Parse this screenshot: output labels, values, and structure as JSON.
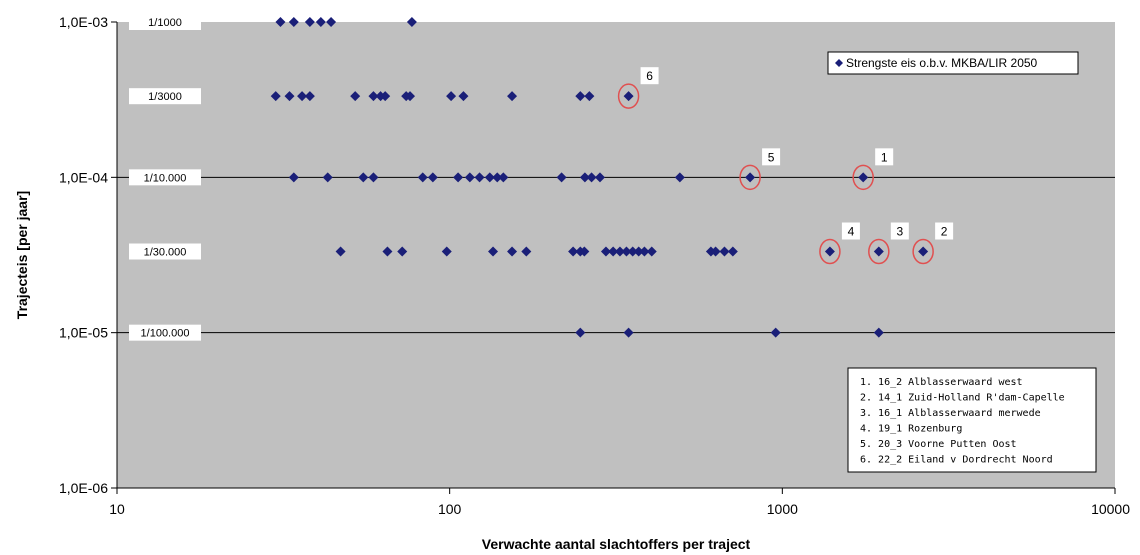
{
  "chart_data": {
    "type": "scatter",
    "xlabel": "Verwachte aantal slachtoffers per traject",
    "ylabel": "Trajecteis [per jaar]",
    "x_scale": "log",
    "y_scale": "log",
    "xlim": [
      10,
      10000
    ],
    "ylim": [
      1e-06,
      0.001
    ],
    "x_tick_labels": [
      "10",
      "100",
      "1000",
      "10000"
    ],
    "y_tick_labels": [
      "1,0E-03",
      "1,0E-04",
      "1,0E-05",
      "1,0E-06"
    ],
    "grid": "horizontal lines at 1,0E-04 and 1,0E-05",
    "legend_position": "top-right",
    "series": [
      {
        "name": "Strengste eis o.b.v. MKBA/LIR 2050",
        "color": "#1a1f78",
        "marker": "diamond",
        "points": [
          [
            31,
            0.001
          ],
          [
            34,
            0.001
          ],
          [
            38,
            0.001
          ],
          [
            41,
            0.001
          ],
          [
            44,
            0.001
          ],
          [
            77,
            0.001
          ],
          [
            30,
            0.000333
          ],
          [
            33,
            0.000333
          ],
          [
            36,
            0.000333
          ],
          [
            38,
            0.000333
          ],
          [
            52,
            0.000333
          ],
          [
            59,
            0.000333
          ],
          [
            62,
            0.000333
          ],
          [
            64,
            0.000333
          ],
          [
            74,
            0.000333
          ],
          [
            76,
            0.000333
          ],
          [
            101,
            0.000333
          ],
          [
            110,
            0.000333
          ],
          [
            154,
            0.000333
          ],
          [
            247,
            0.000333
          ],
          [
            263,
            0.000333
          ],
          [
            345,
            0.000333
          ],
          [
            34,
            0.0001
          ],
          [
            43,
            0.0001
          ],
          [
            55,
            0.0001
          ],
          [
            59,
            0.0001
          ],
          [
            83,
            0.0001
          ],
          [
            89,
            0.0001
          ],
          [
            106,
            0.0001
          ],
          [
            115,
            0.0001
          ],
          [
            123,
            0.0001
          ],
          [
            132,
            0.0001
          ],
          [
            139,
            0.0001
          ],
          [
            145,
            0.0001
          ],
          [
            217,
            0.0001
          ],
          [
            255,
            0.0001
          ],
          [
            267,
            0.0001
          ],
          [
            283,
            0.0001
          ],
          [
            492,
            0.0001
          ],
          [
            800,
            0.0001
          ],
          [
            1750,
            0.0001
          ],
          [
            47,
            3.33e-05
          ],
          [
            65,
            3.33e-05
          ],
          [
            72,
            3.33e-05
          ],
          [
            98,
            3.33e-05
          ],
          [
            135,
            3.33e-05
          ],
          [
            154,
            3.33e-05
          ],
          [
            170,
            3.33e-05
          ],
          [
            235,
            3.33e-05
          ],
          [
            247,
            3.33e-05
          ],
          [
            254,
            3.33e-05
          ],
          [
            295,
            3.33e-05
          ],
          [
            310,
            3.33e-05
          ],
          [
            325,
            3.33e-05
          ],
          [
            340,
            3.33e-05
          ],
          [
            355,
            3.33e-05
          ],
          [
            370,
            3.33e-05
          ],
          [
            385,
            3.33e-05
          ],
          [
            405,
            3.33e-05
          ],
          [
            610,
            3.33e-05
          ],
          [
            630,
            3.33e-05
          ],
          [
            670,
            3.33e-05
          ],
          [
            710,
            3.33e-05
          ],
          [
            1390,
            3.33e-05
          ],
          [
            1950,
            3.33e-05
          ],
          [
            2650,
            3.33e-05
          ],
          [
            247,
            1e-05
          ],
          [
            345,
            1e-05
          ],
          [
            955,
            1e-05
          ],
          [
            1950,
            1e-05
          ]
        ]
      }
    ],
    "level_labels": [
      {
        "text": "1/1000",
        "y": 0.001
      },
      {
        "text": "1/3000",
        "y": 0.000333
      },
      {
        "text": "1/10.000",
        "y": 0.0001
      },
      {
        "text": "1/30.000",
        "y": 3.33e-05
      },
      {
        "text": "1/100.000",
        "y": 1e-05
      }
    ],
    "highlights": [
      {
        "num": "1",
        "x": 1750,
        "y": 0.0001
      },
      {
        "num": "2",
        "x": 2650,
        "y": 3.33e-05
      },
      {
        "num": "3",
        "x": 1950,
        "y": 3.33e-05
      },
      {
        "num": "4",
        "x": 1390,
        "y": 3.33e-05
      },
      {
        "num": "5",
        "x": 800,
        "y": 0.0001
      },
      {
        "num": "6",
        "x": 345,
        "y": 0.000333
      }
    ],
    "annotation_notes": [
      "1.  16_2 Alblasserwaard west",
      "2.  14_1 Zuid-Holland R'dam-Capelle",
      "3.  16_1 Alblasserwaard merwede",
      "4.  19_1 Rozenburg",
      "5.  20_3 Voorne Putten Oost",
      "6.  22_2 Eiland v Dordrecht Noord"
    ]
  },
  "colors": {
    "plot_background": "#c0c0c0",
    "marker": "#1a1f78",
    "highlight_circle": "#e05050",
    "gridline": "#000000"
  }
}
